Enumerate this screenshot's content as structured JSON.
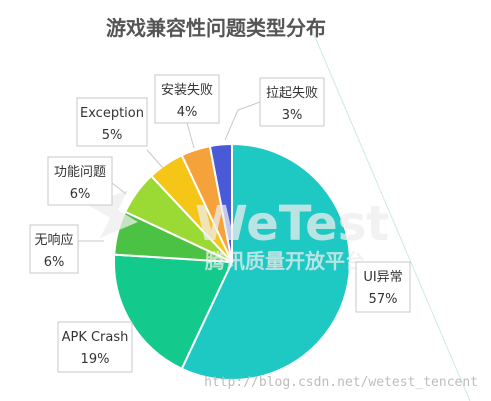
{
  "chart_data": {
    "type": "pie",
    "title": "游戏兼容性问题类型分布",
    "start": "top",
    "direction": "clockwise",
    "slices": [
      {
        "label": "UI异常",
        "value": 57,
        "value_label": "57%",
        "color": "#1ec9c4"
      },
      {
        "label": "APK Crash",
        "value": 19,
        "value_label": "19%",
        "color": "#14c98c"
      },
      {
        "label": "无响应",
        "value": 6,
        "value_label": "6%",
        "color": "#4cc244"
      },
      {
        "label": "功能问题",
        "value": 6,
        "value_label": "6%",
        "color": "#9bd934"
      },
      {
        "label": "Exception",
        "value": 5,
        "value_label": "5%",
        "color": "#f5c518"
      },
      {
        "label": "安装失败",
        "value": 4,
        "value_label": "4%",
        "color": "#f6a23a"
      },
      {
        "label": "拉起失败",
        "value": 3,
        "value_label": "3%",
        "color": "#4a5ad6"
      }
    ]
  },
  "watermark": {
    "brand": "WeTest",
    "tagline": "腾讯质量开放平台",
    "url": "http://blog.csdn.net/wetest_tencent"
  }
}
